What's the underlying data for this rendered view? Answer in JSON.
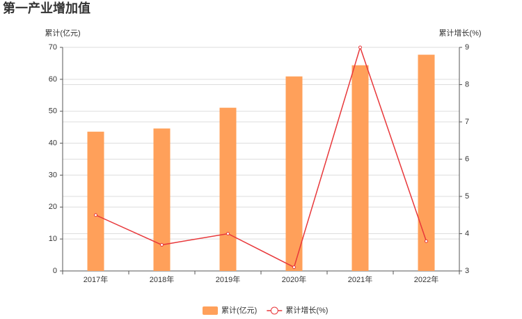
{
  "chart_data": {
    "type": "bar-line",
    "title": "第一产业增加值",
    "y_label": "累计(亿元)",
    "y2_label": "累计增长(%)",
    "categories": [
      "2017年",
      "2018年",
      "2019年",
      "2020年",
      "2021年",
      "2022年"
    ],
    "series": [
      {
        "name": "累计(亿元)",
        "type": "bar",
        "color": "#ffa05a",
        "values": [
          43.6,
          44.6,
          51.1,
          60.9,
          64.4,
          67.7
        ]
      },
      {
        "name": "累计增长(%)",
        "type": "line",
        "axis": "y2",
        "color": "#e8373a",
        "values": [
          4.5,
          3.7,
          4.0,
          3.1,
          9.0,
          3.8
        ]
      }
    ],
    "ylim": [
      0,
      70
    ],
    "yticks": [
      0,
      10,
      20,
      30,
      40,
      50,
      60,
      70
    ],
    "y2lim": [
      3,
      9
    ],
    "y2ticks": [
      3,
      4,
      5,
      6,
      7,
      8,
      9
    ],
    "grid": true,
    "legend": "bottom"
  }
}
